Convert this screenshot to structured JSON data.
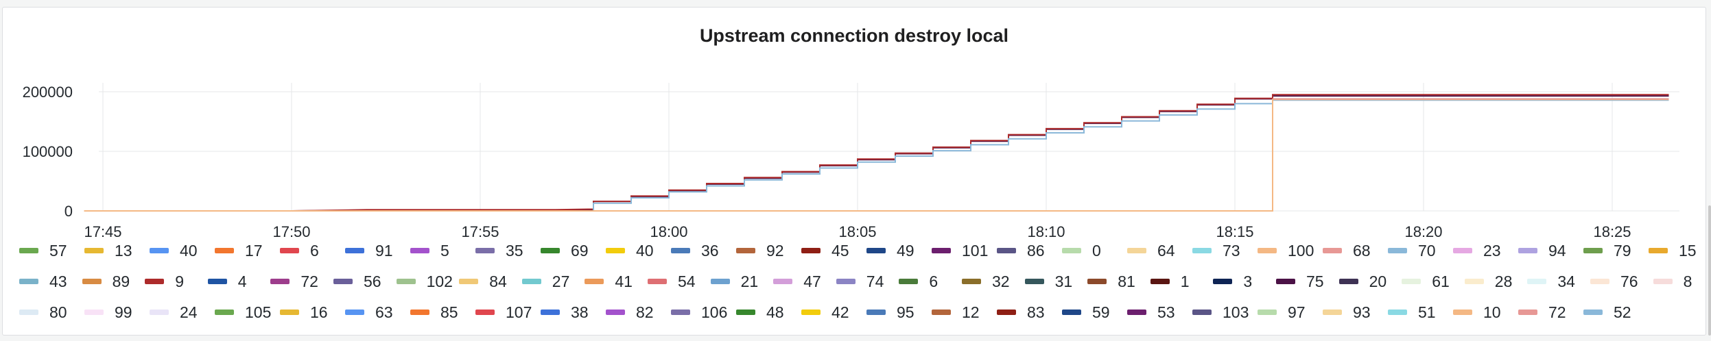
{
  "panel": {
    "title": "Upstream connection destroy local"
  },
  "colors": {
    "palette": [
      "#6aa84f",
      "#e6b832",
      "#5794f2",
      "#f2762e",
      "#e0464e",
      "#3d71d9",
      "#a352cc",
      "#7a6ea8",
      "#37872d",
      "#f2cc0c",
      "#4a7ab8",
      "#b3653b",
      "#8f1f15",
      "#1f4788",
      "#6c1f6e",
      "#5a5586",
      "#b7dbab",
      "#f4d598",
      "#8ad9e3",
      "#f4b884",
      "#e79895",
      "#8ab8d9",
      "#e5a8e2",
      "#aea2e0",
      "#6e9e4d",
      "#e8a92e",
      "#7ab2c9",
      "#d88b43",
      "#ad2b2b",
      "#1f54a3",
      "#9d3d8c",
      "#6a5f9a",
      "#9ec28e",
      "#f0c876",
      "#72c9cf",
      "#eb9a5a",
      "#de6f73",
      "#6da1cf",
      "#d39ed9",
      "#8b84c4",
      "#4a7b3a",
      "#8a6e2a",
      "#35575c",
      "#8c4a2b",
      "#5a1612",
      "#0e2454",
      "#4b1246",
      "#3e3254",
      "#e6f2df",
      "#faeccd",
      "#dff4f6",
      "#fbe6d5",
      "#f6dcdb",
      "#ddeaf4",
      "#f8e2f6",
      "#e9e4f7"
    ]
  },
  "chart_data": {
    "type": "line",
    "title": "Upstream connection destroy local",
    "xlabel": "",
    "ylabel": "",
    "x_ticks": [
      "17:45",
      "17:50",
      "17:55",
      "18:00",
      "18:05",
      "18:10",
      "18:15",
      "18:20",
      "18:25"
    ],
    "y_ticks": [
      "0",
      "100000",
      "200000"
    ],
    "xlim": [
      "17:45",
      "18:26:30"
    ],
    "ylim": [
      0,
      220000
    ],
    "grid": true,
    "legend_position": "bottom",
    "series": [
      {
        "name": "75",
        "color": "#4b1246",
        "points": [
          [
            "17:44:30",
            0
          ],
          [
            "17:50",
            0
          ],
          [
            "17:52",
            1000
          ],
          [
            "17:57",
            1000
          ],
          [
            "17:58",
            2000
          ],
          [
            "17:58",
            16000
          ],
          [
            "17:59",
            16000
          ],
          [
            "17:59",
            24000
          ],
          [
            "18:00",
            24000
          ],
          [
            "18:00",
            34000
          ],
          [
            "18:01",
            34000
          ],
          [
            "18:01",
            45000
          ],
          [
            "18:02",
            45000
          ],
          [
            "18:02",
            55000
          ],
          [
            "18:03",
            55000
          ],
          [
            "18:03",
            65000
          ],
          [
            "18:04",
            65000
          ],
          [
            "18:04",
            76000
          ],
          [
            "18:05",
            76000
          ],
          [
            "18:05",
            86000
          ],
          [
            "18:06",
            86000
          ],
          [
            "18:06",
            96000
          ],
          [
            "18:07",
            96000
          ],
          [
            "18:07",
            106000
          ],
          [
            "18:08",
            106000
          ],
          [
            "18:08",
            117000
          ],
          [
            "18:09",
            117000
          ],
          [
            "18:09",
            127000
          ],
          [
            "18:10",
            127000
          ],
          [
            "18:10",
            137000
          ],
          [
            "18:11",
            137000
          ],
          [
            "18:11",
            147000
          ],
          [
            "18:12",
            147000
          ],
          [
            "18:12",
            157000
          ],
          [
            "18:13",
            157000
          ],
          [
            "18:13",
            167000
          ],
          [
            "18:14",
            167000
          ],
          [
            "18:14",
            178000
          ],
          [
            "18:15",
            178000
          ],
          [
            "18:15",
            188000
          ],
          [
            "18:16",
            188000
          ],
          [
            "18:16",
            193000
          ],
          [
            "18:26:30",
            193000
          ]
        ]
      },
      {
        "name": "1",
        "color": "#ad2b2b",
        "points": [
          [
            "17:44:30",
            0
          ],
          [
            "17:50",
            0
          ],
          [
            "17:52",
            2000
          ],
          [
            "17:57",
            2000
          ],
          [
            "17:58",
            3000
          ],
          [
            "17:58",
            16000
          ],
          [
            "17:59",
            16000
          ],
          [
            "17:59",
            25000
          ],
          [
            "18:00",
            25000
          ],
          [
            "18:00",
            35000
          ],
          [
            "18:01",
            35000
          ],
          [
            "18:01",
            46000
          ],
          [
            "18:02",
            46000
          ],
          [
            "18:02",
            56000
          ],
          [
            "18:03",
            56000
          ],
          [
            "18:03",
            66000
          ],
          [
            "18:04",
            66000
          ],
          [
            "18:04",
            77000
          ],
          [
            "18:05",
            77000
          ],
          [
            "18:05",
            87000
          ],
          [
            "18:06",
            87000
          ],
          [
            "18:06",
            97000
          ],
          [
            "18:07",
            97000
          ],
          [
            "18:07",
            107000
          ],
          [
            "18:08",
            107000
          ],
          [
            "18:08",
            118000
          ],
          [
            "18:09",
            118000
          ],
          [
            "18:09",
            128000
          ],
          [
            "18:10",
            128000
          ],
          [
            "18:10",
            138000
          ],
          [
            "18:11",
            138000
          ],
          [
            "18:11",
            148000
          ],
          [
            "18:12",
            148000
          ],
          [
            "18:12",
            158000
          ],
          [
            "18:13",
            158000
          ],
          [
            "18:13",
            168000
          ],
          [
            "18:14",
            168000
          ],
          [
            "18:14",
            179000
          ],
          [
            "18:15",
            179000
          ],
          [
            "18:15",
            189000
          ],
          [
            "18:16",
            189000
          ],
          [
            "18:16",
            195000
          ],
          [
            "18:26:30",
            195000
          ]
        ]
      },
      {
        "name": "80",
        "color": "#8ab8d9",
        "points": [
          [
            "17:44:30",
            0
          ],
          [
            "17:52",
            0
          ],
          [
            "17:57",
            0
          ],
          [
            "17:58",
            0
          ],
          [
            "17:58",
            13000
          ],
          [
            "17:59",
            13000
          ],
          [
            "17:59",
            22000
          ],
          [
            "18:00",
            22000
          ],
          [
            "18:00",
            32000
          ],
          [
            "18:01",
            32000
          ],
          [
            "18:01",
            42000
          ],
          [
            "18:02",
            42000
          ],
          [
            "18:02",
            52000
          ],
          [
            "18:03",
            52000
          ],
          [
            "18:03",
            62000
          ],
          [
            "18:04",
            62000
          ],
          [
            "18:04",
            72000
          ],
          [
            "18:05",
            72000
          ],
          [
            "18:05",
            82000
          ],
          [
            "18:06",
            82000
          ],
          [
            "18:06",
            92000
          ],
          [
            "18:07",
            92000
          ],
          [
            "18:07",
            101000
          ],
          [
            "18:08",
            101000
          ],
          [
            "18:08",
            111000
          ],
          [
            "18:09",
            111000
          ],
          [
            "18:09",
            121000
          ],
          [
            "18:10",
            121000
          ],
          [
            "18:10",
            131000
          ],
          [
            "18:11",
            131000
          ],
          [
            "18:11",
            141000
          ],
          [
            "18:12",
            141000
          ],
          [
            "18:12",
            151000
          ],
          [
            "18:13",
            151000
          ],
          [
            "18:13",
            161000
          ],
          [
            "18:14",
            161000
          ],
          [
            "18:14",
            171000
          ],
          [
            "18:15",
            171000
          ],
          [
            "18:15",
            180000
          ],
          [
            "18:16",
            180000
          ],
          [
            "18:16",
            186000
          ],
          [
            "18:26:30",
            186000
          ]
        ]
      },
      {
        "name": "10",
        "color": "#f4b884",
        "points": [
          [
            "17:44:30",
            0
          ],
          [
            "17:58",
            0
          ],
          [
            "17:59",
            0
          ],
          [
            "18:15",
            0
          ],
          [
            "18:16",
            0
          ],
          [
            "18:16",
            187000
          ],
          [
            "18:26:30",
            187000
          ]
        ]
      },
      {
        "name": "72",
        "color": "#e79895",
        "points": [
          [
            "18:16",
            188000
          ],
          [
            "18:26:30",
            188000
          ]
        ]
      }
    ],
    "legend": [
      [
        "57",
        "13",
        "40",
        "17",
        "6",
        "91",
        "5",
        "35",
        "69",
        "40",
        "36",
        "92",
        "45",
        "49",
        "101",
        "86",
        "0",
        "64",
        "73",
        "100",
        "68",
        "70",
        "23",
        "94",
        "79",
        "15"
      ],
      [
        "43",
        "89",
        "9",
        "4",
        "72",
        "56",
        "102",
        "84",
        "27",
        "41",
        "54",
        "21",
        "47",
        "74",
        "6",
        "32",
        "31",
        "81",
        "1",
        "3",
        "75",
        "20",
        "61",
        "28",
        "34",
        "76",
        "8"
      ],
      [
        "80",
        "99",
        "24",
        "105",
        "16",
        "63",
        "85",
        "107",
        "38",
        "82",
        "106",
        "48",
        "42",
        "95",
        "12",
        "83",
        "59",
        "53",
        "103",
        "97",
        "93",
        "51",
        "10",
        "72",
        "52"
      ]
    ]
  }
}
